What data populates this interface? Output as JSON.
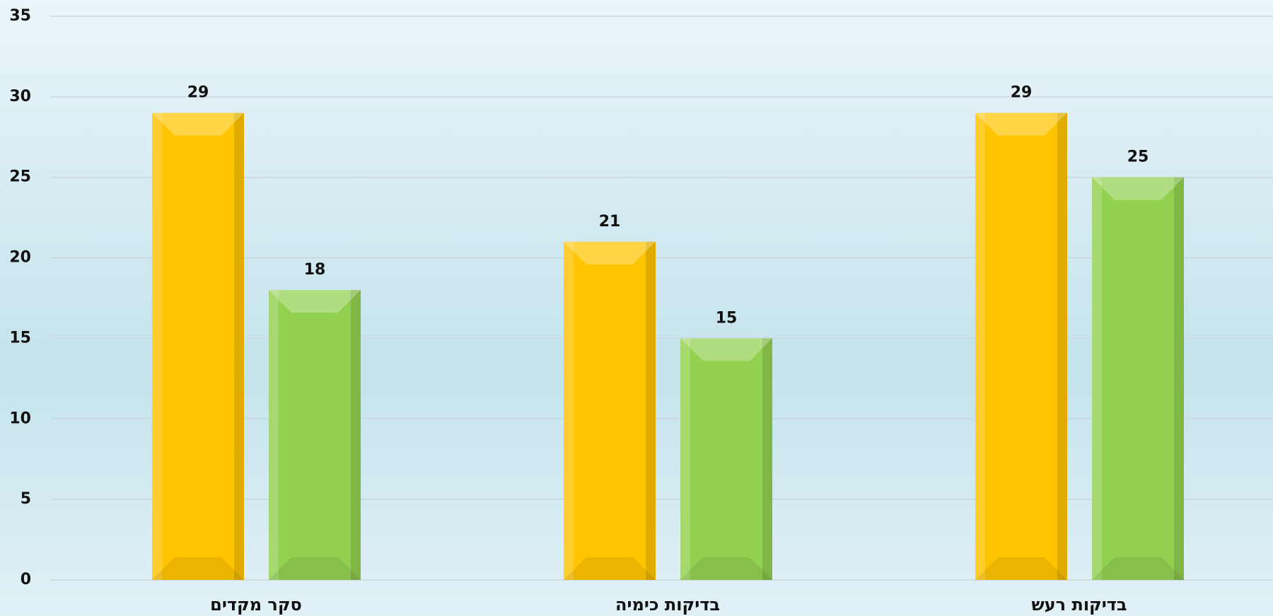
{
  "chart_data": {
    "type": "bar",
    "categories": [
      "סקר מקדים",
      "בדיקות כימיה",
      "בדיקות רעש"
    ],
    "series": [
      {
        "color": "#ffc400",
        "values": [
          29,
          21,
          29
        ]
      },
      {
        "color": "#92d050",
        "values": [
          18,
          15,
          25
        ]
      }
    ],
    "ylim": [
      0,
      35
    ],
    "yticks": [
      0,
      5,
      10,
      15,
      20,
      25,
      30,
      35
    ],
    "grid": true
  }
}
